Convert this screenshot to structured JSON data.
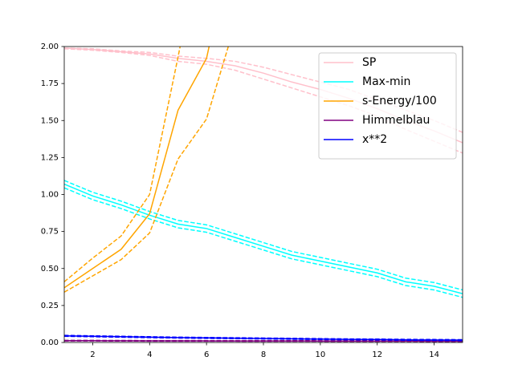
{
  "chart_data": {
    "type": "line",
    "x": [
      1,
      2,
      3,
      4,
      5,
      6,
      7,
      8,
      9,
      10,
      11,
      12,
      13,
      14,
      15
    ],
    "xlim": [
      1,
      15
    ],
    "xticks": [
      2,
      4,
      6,
      8,
      10,
      12,
      14
    ],
    "ylim": [
      0,
      2
    ],
    "yticks": [
      {
        "value": 0,
        "label": "0.00"
      },
      {
        "value": 0.25,
        "label": "0.25"
      },
      {
        "value": 0.5,
        "label": "0.50"
      },
      {
        "value": 0.75,
        "label": "0.75"
      },
      {
        "value": 1,
        "label": "1.00"
      },
      {
        "value": 1.25,
        "label": "1.25"
      },
      {
        "value": 1.5,
        "label": "1.50"
      },
      {
        "value": 1.75,
        "label": "1.75"
      },
      {
        "value": 2,
        "label": "2.00"
      }
    ],
    "legend": "upper right",
    "series": [
      {
        "name": "SP",
        "color": "pink",
        "values": [
          1.99,
          1.98,
          1.965,
          1.95,
          1.92,
          1.9,
          1.87,
          1.82,
          1.76,
          1.71,
          1.65,
          1.58,
          1.5,
          1.43,
          1.35
        ],
        "upper": [
          1.99,
          1.985,
          1.97,
          1.96,
          1.935,
          1.92,
          1.9,
          1.86,
          1.81,
          1.76,
          1.71,
          1.64,
          1.57,
          1.5,
          1.42
        ],
        "lower": [
          1.985,
          1.975,
          1.96,
          1.94,
          1.9,
          1.88,
          1.84,
          1.78,
          1.72,
          1.66,
          1.6,
          1.53,
          1.44,
          1.36,
          1.28
        ]
      },
      {
        "name": "Max-min",
        "color": "cyan",
        "values": [
          1.07,
          0.99,
          0.93,
          0.86,
          0.8,
          0.77,
          0.71,
          0.65,
          0.59,
          0.55,
          0.51,
          0.47,
          0.41,
          0.38,
          0.33
        ],
        "upper": [
          1.095,
          1.015,
          0.955,
          0.885,
          0.825,
          0.795,
          0.735,
          0.675,
          0.615,
          0.575,
          0.535,
          0.495,
          0.435,
          0.405,
          0.355
        ],
        "lower": [
          1.045,
          0.965,
          0.905,
          0.835,
          0.775,
          0.745,
          0.685,
          0.625,
          0.565,
          0.525,
          0.485,
          0.445,
          0.385,
          0.355,
          0.305
        ]
      },
      {
        "name": "s-Energy/100",
        "color": "orange",
        "values": [
          0.37,
          0.5,
          0.63,
          0.87,
          1.57,
          1.92,
          2.8,
          null,
          null,
          null,
          null,
          null,
          null,
          null,
          null
        ],
        "upper": [
          0.41,
          0.57,
          0.72,
          1.0,
          1.93,
          2.9,
          3.5,
          null,
          null,
          null,
          null,
          null,
          null,
          null,
          null
        ],
        "lower": [
          0.34,
          0.45,
          0.56,
          0.74,
          1.24,
          1.51,
          2.15,
          null,
          null,
          null,
          null,
          null,
          null,
          null,
          null
        ]
      },
      {
        "name": "Himmelblau",
        "color": "purple",
        "values": [
          0.012,
          0.012,
          0.0115,
          0.011,
          0.011,
          0.0105,
          0.0105,
          0.01,
          0.01,
          0.0098,
          0.0096,
          0.0094,
          0.0092,
          0.009,
          0.009
        ],
        "upper": [
          0.014,
          0.014,
          0.0135,
          0.013,
          0.013,
          0.0125,
          0.0125,
          0.012,
          0.012,
          0.0118,
          0.0116,
          0.0114,
          0.0112,
          0.011,
          0.011
        ],
        "lower": [
          0.01,
          0.01,
          0.0095,
          0.009,
          0.009,
          0.0085,
          0.0085,
          0.008,
          0.008,
          0.0078,
          0.0076,
          0.0074,
          0.0072,
          0.007,
          0.007
        ]
      },
      {
        "name": "x**2",
        "color": "blue",
        "values": [
          0.045,
          0.042,
          0.039,
          0.036,
          0.033,
          0.031,
          0.029,
          0.027,
          0.025,
          0.023,
          0.021,
          0.02,
          0.018,
          0.017,
          0.016
        ],
        "upper": [
          0.048,
          0.045,
          0.042,
          0.039,
          0.036,
          0.034,
          0.032,
          0.03,
          0.028,
          0.026,
          0.024,
          0.023,
          0.021,
          0.02,
          0.019
        ],
        "lower": [
          0.042,
          0.039,
          0.036,
          0.033,
          0.03,
          0.028,
          0.026,
          0.024,
          0.022,
          0.02,
          0.018,
          0.017,
          0.015,
          0.014,
          0.013
        ]
      }
    ]
  }
}
